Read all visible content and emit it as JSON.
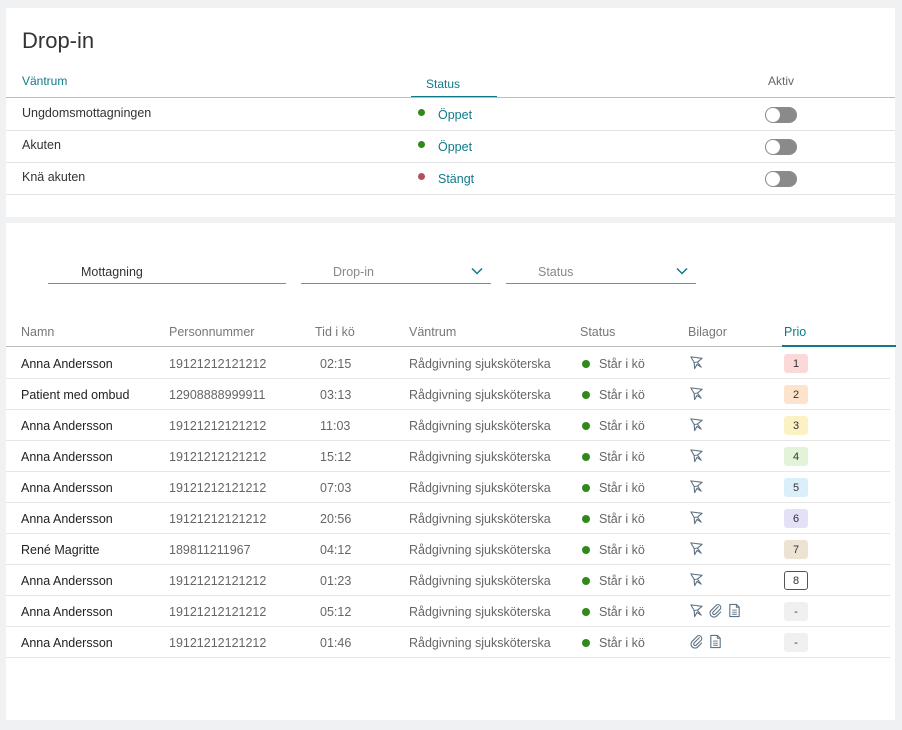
{
  "dropin": {
    "title": "Drop-in",
    "headers": {
      "vantrum": "Väntrum",
      "status": "Status",
      "aktiv": "Aktiv"
    },
    "rows": [
      {
        "name": "Ungdomsmottagningen",
        "status": "Öppet",
        "dot_color": "#2f8a1b",
        "active": false
      },
      {
        "name": "Akuten",
        "status": "Öppet",
        "dot_color": "#2f8a1b",
        "active": false
      },
      {
        "name": "Knä akuten",
        "status": "Stängt",
        "dot_color": "#b5505a",
        "active": false
      }
    ]
  },
  "filters": {
    "mottagning": "Mottagning",
    "dropin_placeholder": "Drop-in",
    "status_placeholder": "Status"
  },
  "queue": {
    "headers": {
      "namn": "Namn",
      "personnummer": "Personnummer",
      "tid": "Tid i kö",
      "vantrum": "Väntrum",
      "status": "Status",
      "bilagor": "Bilagor",
      "prio": "Prio"
    },
    "rows": [
      {
        "name": "Anna Andersson",
        "pnr": "19121212121212",
        "tid": "02:15",
        "vantrum": "Rådgivning sjuksköterska",
        "status": "Står i kö",
        "bilagor": [
          "form-icon"
        ],
        "prio": "1",
        "prio_bg": "#fbd9d9",
        "prio_border": "#fbd9d9"
      },
      {
        "name": "Patient med ombud",
        "pnr": "12908888999911",
        "tid": "03:13",
        "vantrum": "Rådgivning sjuksköterska",
        "status": "Står i kö",
        "bilagor": [
          "form-icon"
        ],
        "prio": "2",
        "prio_bg": "#fde2cc",
        "prio_border": "#fde2cc"
      },
      {
        "name": "Anna Andersson",
        "pnr": "19121212121212",
        "tid": "11:03",
        "vantrum": "Rådgivning sjuksköterska",
        "status": "Står i kö",
        "bilagor": [
          "form-icon"
        ],
        "prio": "3",
        "prio_bg": "#fcf1c2",
        "prio_border": "#fcf1c2"
      },
      {
        "name": "Anna Andersson",
        "pnr": "19121212121212",
        "tid": "15:12",
        "vantrum": "Rådgivning sjuksköterska",
        "status": "Står i kö",
        "bilagor": [
          "form-icon"
        ],
        "prio": "4",
        "prio_bg": "#e2f3d8",
        "prio_border": "#e2f3d8"
      },
      {
        "name": "Anna Andersson",
        "pnr": "19121212121212",
        "tid": "07:03",
        "vantrum": "Rådgivning sjuksköterska",
        "status": "Står i kö",
        "bilagor": [
          "form-icon"
        ],
        "prio": "5",
        "prio_bg": "#dbeffb",
        "prio_border": "#dbeffb"
      },
      {
        "name": "Anna Andersson",
        "pnr": "19121212121212",
        "tid": "20:56",
        "vantrum": "Rådgivning sjuksköterska",
        "status": "Står i kö",
        "bilagor": [
          "form-icon"
        ],
        "prio": "6",
        "prio_bg": "#e3e0f7",
        "prio_border": "#e3e0f7"
      },
      {
        "name": "René  Magritte",
        "pnr": "189811211967",
        "tid": "04:12",
        "vantrum": "Rådgivning sjuksköterska",
        "status": "Står i kö",
        "bilagor": [
          "form-icon"
        ],
        "prio": "7",
        "prio_bg": "#ece3d3",
        "prio_border": "#ece3d3"
      },
      {
        "name": "Anna Andersson",
        "pnr": "19121212121212",
        "tid": "01:23",
        "vantrum": "Rådgivning sjuksköterska",
        "status": "Står i kö",
        "bilagor": [
          "form-icon"
        ],
        "prio": "8",
        "prio_bg": "#ffffff",
        "prio_border": "#555555"
      },
      {
        "name": "Anna Andersson",
        "pnr": "19121212121212",
        "tid": "05:12",
        "vantrum": "Rådgivning sjuksköterska",
        "status": "Står i kö",
        "bilagor": [
          "form-icon",
          "paperclip-icon",
          "document-icon"
        ],
        "prio": "-",
        "prio_bg": "#f0f0f0",
        "prio_border": "#f0f0f0"
      },
      {
        "name": "Anna Andersson",
        "pnr": "19121212121212",
        "tid": "01:46",
        "vantrum": "Rådgivning sjuksköterska",
        "status": "Står i kö",
        "bilagor": [
          "paperclip-icon",
          "document-icon"
        ],
        "prio": "-",
        "prio_bg": "#f0f0f0",
        "prio_border": "#f0f0f0"
      }
    ]
  }
}
